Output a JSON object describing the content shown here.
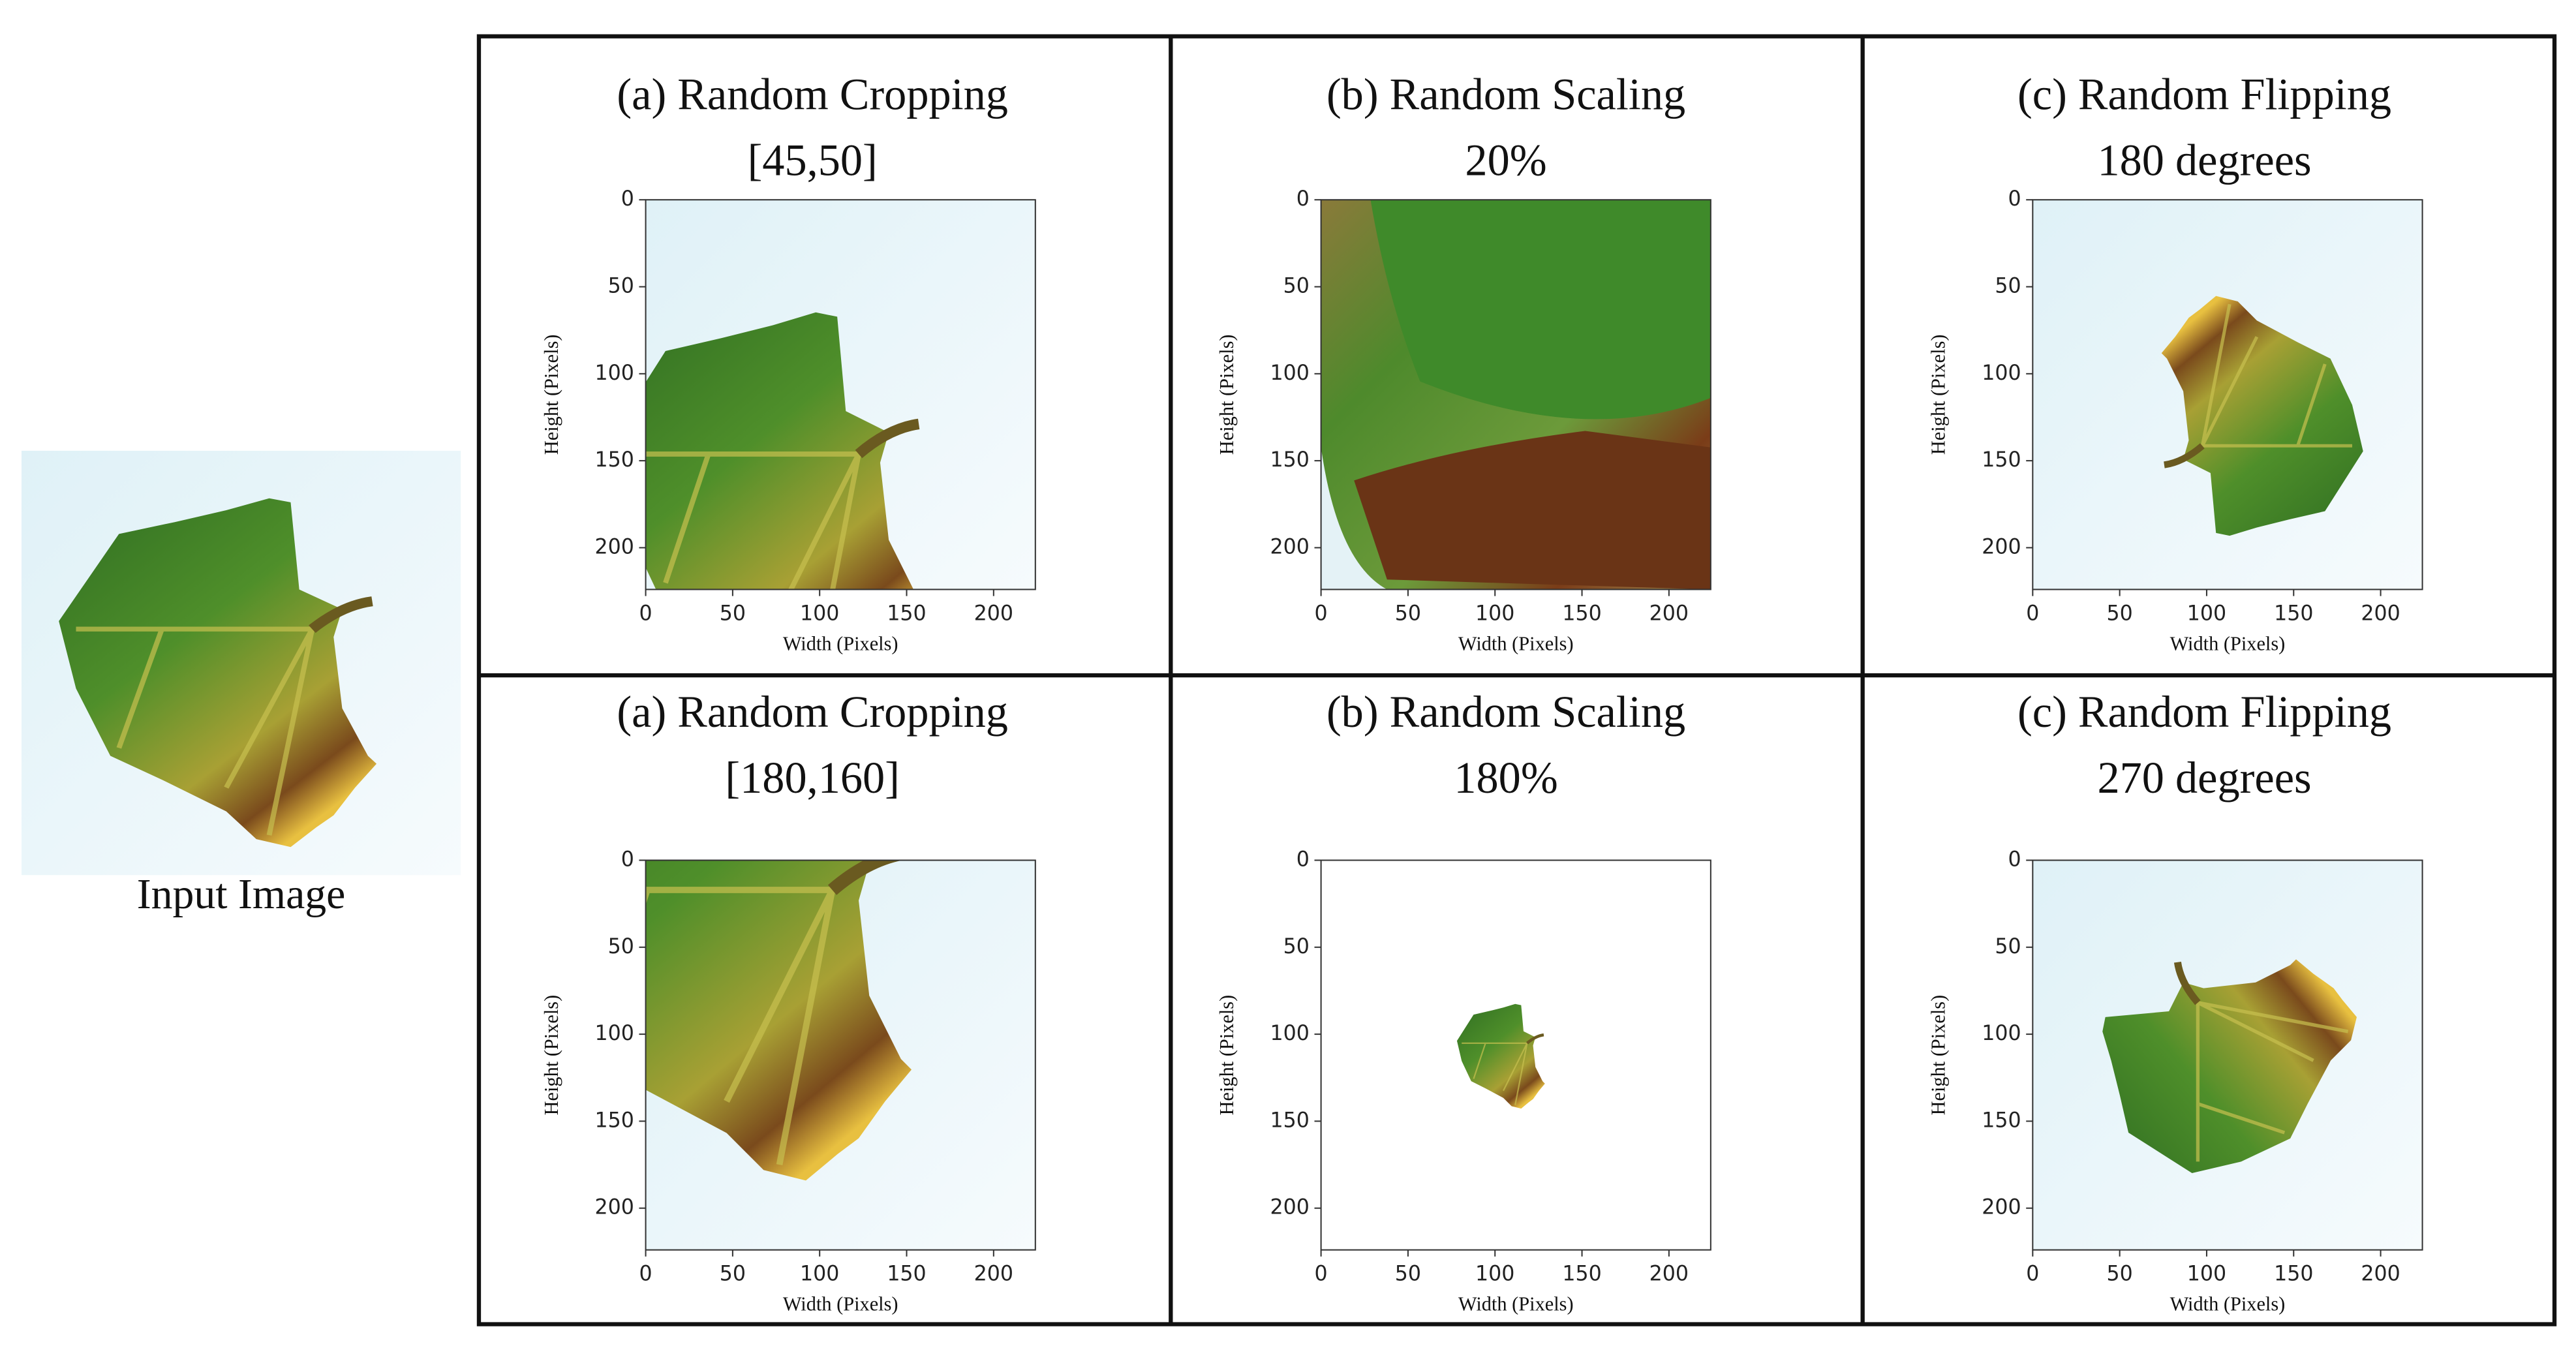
{
  "input_image": {
    "caption": "Input Image"
  },
  "panels": [
    {
      "title": "(a) Random Cropping",
      "subtitle": "[45,50]",
      "xlabel": "Width (Pixels)",
      "ylabel": "Height (Pixels)",
      "xlim": [
        0,
        224
      ],
      "ylim": [
        224,
        0
      ],
      "xticks": [
        0,
        50,
        100,
        150,
        200
      ],
      "yticks": [
        0,
        50,
        100,
        150,
        200
      ]
    },
    {
      "title": "(b) Random Scaling",
      "subtitle": "20%",
      "xlabel": "Width (Pixels)",
      "ylabel": "Height (Pixels)",
      "xlim": [
        0,
        224
      ],
      "ylim": [
        224,
        0
      ],
      "xticks": [
        0,
        50,
        100,
        150,
        200
      ],
      "yticks": [
        0,
        50,
        100,
        150,
        200
      ]
    },
    {
      "title": "(c) Random Flipping",
      "subtitle": "180 degrees",
      "xlabel": "Width (Pixels)",
      "ylabel": "Height (Pixels)",
      "xlim": [
        0,
        224
      ],
      "ylim": [
        224,
        0
      ],
      "xticks": [
        0,
        50,
        100,
        150,
        200
      ],
      "yticks": [
        0,
        50,
        100,
        150,
        200
      ]
    },
    {
      "title": "(a)  Random Cropping",
      "subtitle": "[180,160]",
      "xlabel": "Width (Pixels)",
      "ylabel": "Height (Pixels)",
      "xlim": [
        0,
        224
      ],
      "ylim": [
        224,
        0
      ],
      "xticks": [
        0,
        50,
        100,
        150,
        200
      ],
      "yticks": [
        0,
        50,
        100,
        150,
        200
      ]
    },
    {
      "title": "(b) Random Scaling",
      "subtitle": "180%",
      "xlabel": "Width (Pixels)",
      "ylabel": "Height (Pixels)",
      "xlim": [
        0,
        224
      ],
      "ylim": [
        224,
        0
      ],
      "xticks": [
        0,
        50,
        100,
        150,
        200
      ],
      "yticks": [
        0,
        50,
        100,
        150,
        200
      ]
    },
    {
      "title": "(c) Random Flipping",
      "subtitle": "270 degrees",
      "xlabel": "Width (Pixels)",
      "ylabel": "Height (Pixels)",
      "xlim": [
        0,
        224
      ],
      "ylim": [
        224,
        0
      ],
      "xticks": [
        0,
        50,
        100,
        150,
        200
      ],
      "yticks": [
        0,
        50,
        100,
        150,
        200
      ]
    }
  ]
}
